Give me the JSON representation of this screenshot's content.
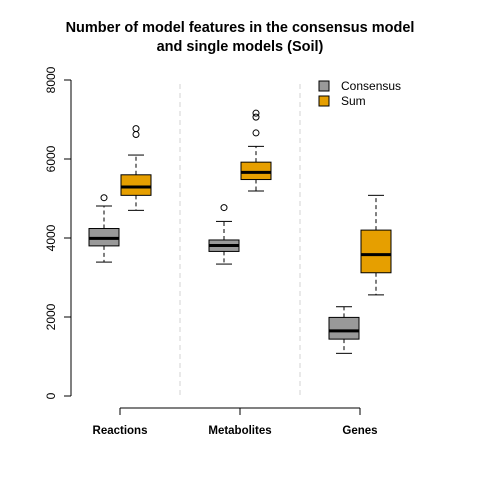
{
  "chart_data": {
    "type": "boxplot",
    "title_lines": [
      "Number of model features in the consensus model",
      "and single models (Soil)"
    ],
    "xlabel": "",
    "ylabel": "",
    "ylim": [
      0,
      8000
    ],
    "y_ticks": [
      0,
      2000,
      4000,
      6000,
      8000
    ],
    "categories": [
      "Reactions",
      "Metabolites",
      "Genes"
    ],
    "grid": false,
    "legend_position": "top-right",
    "series": [
      {
        "name": "Consensus",
        "color": "#999999",
        "boxes": [
          {
            "min": 3390,
            "q1": 3800,
            "median": 3990,
            "q3": 4240,
            "max": 4810,
            "outliers": [
              5020
            ]
          },
          {
            "min": 3340,
            "q1": 3660,
            "median": 3810,
            "q3": 3950,
            "max": 4420,
            "outliers": [
              4770
            ]
          },
          {
            "min": 1080,
            "q1": 1440,
            "median": 1650,
            "q3": 1990,
            "max": 2260,
            "outliers": []
          }
        ]
      },
      {
        "name": "Sum",
        "color": "#E69F00",
        "boxes": [
          {
            "min": 4700,
            "q1": 5080,
            "median": 5290,
            "q3": 5600,
            "max": 6100,
            "outliers": [
              6620,
              6770
            ]
          },
          {
            "min": 5190,
            "q1": 5480,
            "median": 5660,
            "q3": 5920,
            "max": 6320,
            "outliers": [
              6660,
              7060,
              7160
            ]
          },
          {
            "min": 2560,
            "q1": 3120,
            "median": 3580,
            "q3": 4200,
            "max": 5080,
            "outliers": []
          }
        ]
      }
    ]
  }
}
